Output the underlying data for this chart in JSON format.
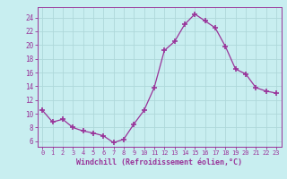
{
  "x": [
    0,
    1,
    2,
    3,
    4,
    5,
    6,
    7,
    8,
    9,
    10,
    11,
    12,
    13,
    14,
    15,
    16,
    17,
    18,
    19,
    20,
    21,
    22,
    23
  ],
  "y": [
    10.5,
    8.8,
    9.2,
    8.0,
    7.5,
    7.2,
    6.8,
    5.8,
    6.3,
    8.5,
    10.5,
    13.8,
    19.2,
    20.5,
    23.0,
    24.5,
    23.5,
    22.5,
    19.8,
    16.5,
    15.8,
    13.8,
    13.3,
    13.0
  ],
  "xlabel": "Windchill (Refroidissement éolien,°C)",
  "ylabel_ticks": [
    6,
    8,
    10,
    12,
    14,
    16,
    18,
    20,
    22,
    24
  ],
  "xlim": [
    -0.5,
    23.5
  ],
  "ylim": [
    5.2,
    25.5
  ],
  "bg_color": "#c8eef0",
  "line_color": "#993399",
  "grid_color": "#aed8da",
  "xlabel_color": "#993399",
  "tick_color": "#993399"
}
